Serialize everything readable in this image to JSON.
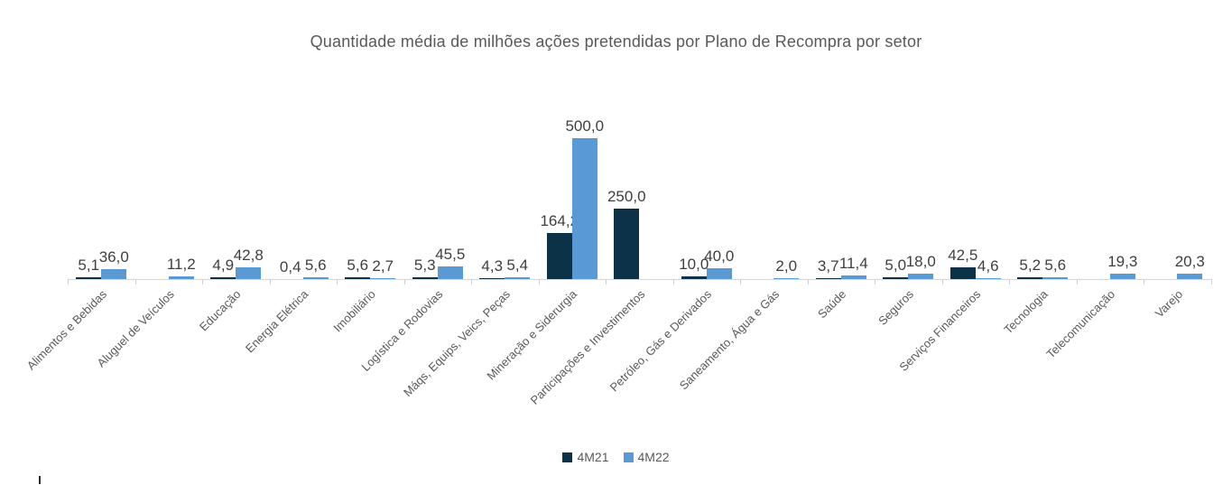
{
  "chart_data": {
    "type": "bar",
    "title": "Quantidade média de milhões ações pretendidas por Plano de Recompra por setor",
    "categories": [
      "Alimentos e Bebidas",
      "Aluguel de Veículos",
      "Educação",
      "Energia Elétrica",
      "Imobiliário",
      "Logística e Rodovias",
      "Máqs, Equips, Veics, Peças",
      "Mineração e Siderurgia",
      "Participações e Investimentos",
      "Petróleo, Gás e Derivados",
      "Saneamento, Água e Gás",
      "Saúde",
      "Seguros",
      "Serviços Financeiros",
      "Tecnologia",
      "Telecomunicação",
      "Varejo"
    ],
    "series": [
      {
        "name": "4M21",
        "color": "#0b3247",
        "values": [
          5.1,
          null,
          4.9,
          0.4,
          5.6,
          5.3,
          4.3,
          164.2,
          250.0,
          10.0,
          null,
          3.7,
          5.0,
          42.5,
          5.2,
          null,
          null
        ],
        "labels": [
          "5,1",
          "",
          "4,9",
          "0,4",
          "5,6",
          "5,3",
          "4,3",
          "164,2",
          "250,0",
          "10,0",
          "",
          "3,7",
          "5,0",
          "42,5",
          "5,2",
          "",
          ""
        ]
      },
      {
        "name": "4M22",
        "color": "#5a9ad4",
        "values": [
          36.0,
          11.2,
          42.8,
          5.6,
          2.7,
          45.5,
          5.4,
          500.0,
          null,
          40.0,
          2.0,
          11.4,
          18.0,
          4.6,
          5.6,
          19.3,
          20.3
        ],
        "labels": [
          "36,0",
          "11,2",
          "42,8",
          "5,6",
          "2,7",
          "45,5",
          "5,4",
          "500,0",
          "",
          "40,0",
          "2,0",
          "11,4",
          "18,0",
          "4,6",
          "5,6",
          "19,3",
          "20,3"
        ]
      }
    ],
    "ylim": [
      0,
      500
    ],
    "grid": false,
    "legend_position": "bottom",
    "value_label_decimal": "comma"
  }
}
